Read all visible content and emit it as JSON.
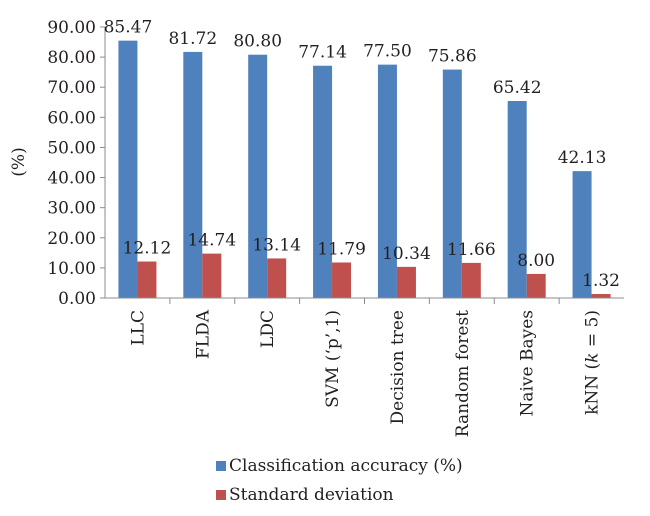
{
  "chart_data": {
    "type": "bar",
    "title": "",
    "xlabel": "",
    "ylabel": "(%)",
    "ylim": [
      0,
      90
    ],
    "ytick_step": 10,
    "ytick_labels": [
      "0.00",
      "10.00",
      "20.00",
      "30.00",
      "40.00",
      "50.00",
      "60.00",
      "70.00",
      "80.00",
      "90.00"
    ],
    "grid": false,
    "legend_position": "bottom",
    "categories": [
      "LLC",
      "FLDA",
      "LDC",
      "SVM (‘p’,1)",
      "Decision tree",
      "Random forest",
      "Naive Bayes",
      "kNN (k = 5)"
    ],
    "series": [
      {
        "name": "Classification accuracy (%)",
        "color": "#4f81bd",
        "values": [
          85.47,
          81.72,
          80.8,
          77.14,
          77.5,
          75.86,
          65.42,
          42.13
        ],
        "labels": [
          "85.47",
          "81.72",
          "80.80",
          "77.14",
          "77.50",
          "75.86",
          "65.42",
          "42.13"
        ]
      },
      {
        "name": "Standard deviation",
        "color": "#c0504d",
        "values": [
          12.12,
          14.74,
          13.14,
          11.79,
          10.34,
          11.66,
          8.0,
          1.32
        ],
        "labels": [
          "12.12",
          "14.74",
          "13.14",
          "11.79",
          "10.34",
          "11.66",
          "8.00",
          "1.32"
        ]
      }
    ]
  }
}
